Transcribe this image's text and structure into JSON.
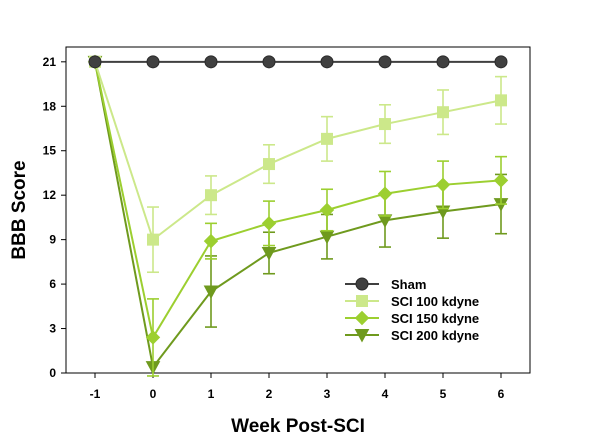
{
  "chart_data": {
    "type": "line",
    "title": "",
    "xlabel": "Week Post-SCI",
    "ylabel": "BBB Score",
    "x": [
      -1,
      0,
      1,
      2,
      3,
      4,
      5,
      6
    ],
    "xlim": [
      -1.5,
      6.5
    ],
    "ylim": [
      0,
      22
    ],
    "yticks": [
      0,
      3,
      6,
      9,
      12,
      15,
      18,
      21
    ],
    "grid": false,
    "legend_position": "bottom-right",
    "series": [
      {
        "name": "Sham",
        "marker": "circle",
        "color": "#404040",
        "values": [
          21,
          21,
          21,
          21,
          21,
          21,
          21,
          21
        ],
        "errors": [
          0,
          0,
          0,
          0,
          0,
          0,
          0,
          0
        ]
      },
      {
        "name": "SCI 100 kdyne",
        "marker": "square",
        "color": "#cce88a",
        "values": [
          21,
          9.0,
          12.0,
          14.1,
          15.8,
          16.8,
          17.6,
          18.4
        ],
        "errors": [
          0,
          2.2,
          1.3,
          1.3,
          1.5,
          1.3,
          1.5,
          1.6
        ]
      },
      {
        "name": "SCI 150 kdyne",
        "marker": "diamond",
        "color": "#9ccf30",
        "values": [
          21,
          2.4,
          8.9,
          10.1,
          11.0,
          12.1,
          12.7,
          13.0
        ],
        "errors": [
          0,
          2.6,
          1.2,
          1.5,
          1.4,
          1.5,
          1.6,
          1.6
        ]
      },
      {
        "name": "SCI 200 kdyne",
        "marker": "triangle-down",
        "color": "#6f9a1e",
        "values": [
          21,
          0.4,
          5.5,
          8.1,
          9.2,
          10.3,
          10.9,
          11.4
        ],
        "errors": [
          0,
          0,
          2.4,
          1.4,
          1.5,
          1.8,
          1.8,
          2.0
        ]
      }
    ]
  }
}
